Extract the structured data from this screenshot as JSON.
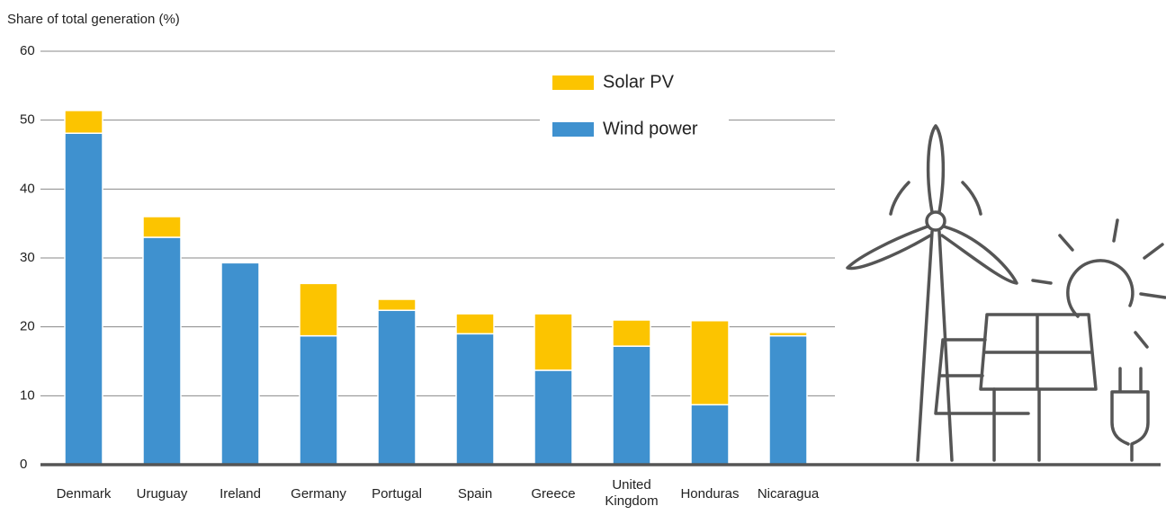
{
  "chart_data": {
    "type": "stacked_bar",
    "y_label": "Share of total generation (%)",
    "categories": [
      "Denmark",
      "Uruguay",
      "Ireland",
      "Germany",
      "Portugal",
      "Spain",
      "Greece",
      "United Kingdom",
      "Honduras",
      "Nicaragua"
    ],
    "series": [
      {
        "name": "Wind power",
        "color": "#3f91cf",
        "values": [
          48.1,
          33.0,
          29.3,
          18.7,
          22.4,
          19.0,
          13.7,
          17.2,
          8.7,
          18.7
        ]
      },
      {
        "name": "Solar PV",
        "color": "#fcc400",
        "values": [
          3.3,
          3.0,
          0,
          7.6,
          1.6,
          2.9,
          8.2,
          3.8,
          12.2,
          0.5
        ]
      }
    ],
    "ylim": [
      0,
      60
    ],
    "yticks": [
      0,
      10,
      20,
      30,
      40,
      50,
      60
    ],
    "grid": true
  }
}
